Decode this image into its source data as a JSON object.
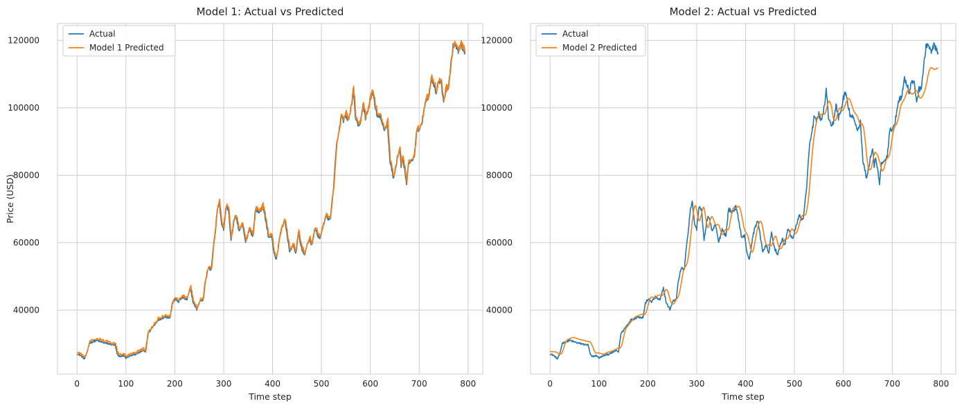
{
  "chart_data": [
    {
      "type": "line",
      "title": "Model 1: Actual vs Predicted",
      "xlabel": "Time step",
      "ylabel": "Price (USD)",
      "xlim": [
        -40,
        830
      ],
      "ylim": [
        21000,
        125000
      ],
      "xticks": [
        0,
        100,
        200,
        300,
        400,
        500,
        600,
        700,
        800
      ],
      "yticks": [
        40000,
        60000,
        80000,
        100000,
        120000
      ],
      "grid": true,
      "legend": "top-left",
      "lag": 1,
      "pred_noise": 600,
      "series": [
        {
          "name": "Actual",
          "color": "#1f77b4"
        },
        {
          "name": "Model 1 Predicted",
          "color": "#ff7f0e"
        }
      ],
      "anchors": [
        [
          0,
          27000
        ],
        [
          8,
          26500
        ],
        [
          15,
          25500
        ],
        [
          20,
          27000
        ],
        [
          25,
          30200
        ],
        [
          40,
          31000
        ],
        [
          55,
          30300
        ],
        [
          70,
          29800
        ],
        [
          78,
          29600
        ],
        [
          82,
          27000
        ],
        [
          85,
          26200
        ],
        [
          95,
          26500
        ],
        [
          100,
          25800
        ],
        [
          110,
          26500
        ],
        [
          125,
          27200
        ],
        [
          135,
          28000
        ],
        [
          140,
          27600
        ],
        [
          145,
          33000
        ],
        [
          155,
          35000
        ],
        [
          165,
          37000
        ],
        [
          180,
          38000
        ],
        [
          190,
          37800
        ],
        [
          195,
          42000
        ],
        [
          200,
          43200
        ],
        [
          208,
          42500
        ],
        [
          215,
          43800
        ],
        [
          225,
          43000
        ],
        [
          232,
          46500
        ],
        [
          238,
          42000
        ],
        [
          245,
          40200
        ],
        [
          252,
          42800
        ],
        [
          258,
          43000
        ],
        [
          262,
          48500
        ],
        [
          268,
          52300
        ],
        [
          275,
          52000
        ],
        [
          278,
          58000
        ],
        [
          283,
          63500
        ],
        [
          287,
          70000
        ],
        [
          291,
          72500
        ],
        [
          295,
          66000
        ],
        [
          300,
          64000
        ],
        [
          305,
          71000
        ],
        [
          310,
          69500
        ],
        [
          315,
          60500
        ],
        [
          320,
          66000
        ],
        [
          325,
          68000
        ],
        [
          332,
          63000
        ],
        [
          338,
          65500
        ],
        [
          345,
          60000
        ],
        [
          352,
          64000
        ],
        [
          360,
          62000
        ],
        [
          365,
          70000
        ],
        [
          372,
          69000
        ],
        [
          380,
          70500
        ],
        [
          385,
          67500
        ],
        [
          392,
          61500
        ],
        [
          398,
          62000
        ],
        [
          403,
          57000
        ],
        [
          408,
          55000
        ],
        [
          415,
          62000
        ],
        [
          420,
          65000
        ],
        [
          425,
          66500
        ],
        [
          430,
          62000
        ],
        [
          435,
          57500
        ],
        [
          442,
          59000
        ],
        [
          448,
          57000
        ],
        [
          453,
          63000
        ],
        [
          458,
          59000
        ],
        [
          465,
          56500
        ],
        [
          470,
          58500
        ],
        [
          475,
          61500
        ],
        [
          480,
          59000
        ],
        [
          487,
          64500
        ],
        [
          492,
          62000
        ],
        [
          498,
          61500
        ],
        [
          505,
          66000
        ],
        [
          510,
          68000
        ],
        [
          517,
          66500
        ],
        [
          520,
          70000
        ],
        [
          525,
          76000
        ],
        [
          530,
          88000
        ],
        [
          535,
          92000
        ],
        [
          540,
          97000
        ],
        [
          545,
          96000
        ],
        [
          550,
          98000
        ],
        [
          555,
          96000
        ],
        [
          560,
          99500
        ],
        [
          565,
          105000
        ],
        [
          570,
          97000
        ],
        [
          575,
          94000
        ],
        [
          580,
          96000
        ],
        [
          585,
          101000
        ],
        [
          590,
          97000
        ],
        [
          595,
          99000
        ],
        [
          600,
          103000
        ],
        [
          605,
          104500
        ],
        [
          610,
          100000
        ],
        [
          615,
          97500
        ],
        [
          620,
          97000
        ],
        [
          625,
          95000
        ],
        [
          630,
          93500
        ],
        [
          635,
          96000
        ],
        [
          640,
          84000
        ],
        [
          645,
          81000
        ],
        [
          648,
          79000
        ],
        [
          652,
          82500
        ],
        [
          655,
          85000
        ],
        [
          660,
          88000
        ],
        [
          663,
          83000
        ],
        [
          666,
          84500
        ],
        [
          670,
          82000
        ],
        [
          674,
          77000
        ],
        [
          678,
          84000
        ],
        [
          683,
          83500
        ],
        [
          690,
          86000
        ],
        [
          695,
          93000
        ],
        [
          700,
          94000
        ],
        [
          705,
          94500
        ],
        [
          710,
          100000
        ],
        [
          715,
          103000
        ],
        [
          720,
          103500
        ],
        [
          725,
          109000
        ],
        [
          730,
          107000
        ],
        [
          735,
          104500
        ],
        [
          740,
          108000
        ],
        [
          745,
          107000
        ],
        [
          750,
          102000
        ],
        [
          755,
          105500
        ],
        [
          760,
          106500
        ],
        [
          765,
          113000
        ],
        [
          770,
          119000
        ],
        [
          775,
          118500
        ],
        [
          780,
          116000
        ],
        [
          785,
          119000
        ],
        [
          790,
          117000
        ],
        [
          794,
          116000
        ]
      ]
    },
    {
      "type": "line",
      "title": "Model 2: Actual vs Predicted",
      "xlabel": "Time step",
      "ylabel": "",
      "xlim": [
        -40,
        830
      ],
      "ylim": [
        21000,
        125000
      ],
      "xticks": [
        0,
        100,
        200,
        300,
        400,
        500,
        600,
        700,
        800
      ],
      "yticks": [
        40000,
        60000,
        80000,
        100000,
        120000
      ],
      "grid": true,
      "legend": "top-left",
      "lag": 7,
      "pred_noise": 0,
      "series": [
        {
          "name": "Actual",
          "color": "#1f77b4"
        },
        {
          "name": "Model 2 Predicted",
          "color": "#ff7f0e"
        }
      ],
      "anchors": [
        [
          0,
          27000
        ],
        [
          8,
          26500
        ],
        [
          15,
          25500
        ],
        [
          20,
          27000
        ],
        [
          25,
          30200
        ],
        [
          40,
          31000
        ],
        [
          55,
          30300
        ],
        [
          70,
          29800
        ],
        [
          78,
          29600
        ],
        [
          82,
          27000
        ],
        [
          85,
          26200
        ],
        [
          95,
          26500
        ],
        [
          100,
          25800
        ],
        [
          110,
          26500
        ],
        [
          125,
          27200
        ],
        [
          135,
          28000
        ],
        [
          140,
          27600
        ],
        [
          145,
          33000
        ],
        [
          155,
          35000
        ],
        [
          165,
          37000
        ],
        [
          180,
          38000
        ],
        [
          190,
          37800
        ],
        [
          195,
          42000
        ],
        [
          200,
          43200
        ],
        [
          208,
          42500
        ],
        [
          215,
          43800
        ],
        [
          225,
          43000
        ],
        [
          232,
          46500
        ],
        [
          238,
          42000
        ],
        [
          245,
          40200
        ],
        [
          252,
          42800
        ],
        [
          258,
          43000
        ],
        [
          262,
          48500
        ],
        [
          268,
          52300
        ],
        [
          275,
          52000
        ],
        [
          278,
          58000
        ],
        [
          283,
          63500
        ],
        [
          287,
          70000
        ],
        [
          291,
          72500
        ],
        [
          295,
          66000
        ],
        [
          300,
          64000
        ],
        [
          305,
          71000
        ],
        [
          310,
          69500
        ],
        [
          315,
          60500
        ],
        [
          320,
          66000
        ],
        [
          325,
          68000
        ],
        [
          332,
          63000
        ],
        [
          338,
          65500
        ],
        [
          345,
          60000
        ],
        [
          352,
          64000
        ],
        [
          360,
          62000
        ],
        [
          365,
          70000
        ],
        [
          372,
          69000
        ],
        [
          380,
          70500
        ],
        [
          385,
          67500
        ],
        [
          392,
          61500
        ],
        [
          398,
          62000
        ],
        [
          403,
          57000
        ],
        [
          408,
          55000
        ],
        [
          415,
          62000
        ],
        [
          420,
          65000
        ],
        [
          425,
          66500
        ],
        [
          430,
          62000
        ],
        [
          435,
          57500
        ],
        [
          442,
          59000
        ],
        [
          448,
          57000
        ],
        [
          453,
          63000
        ],
        [
          458,
          59000
        ],
        [
          465,
          56500
        ],
        [
          470,
          58500
        ],
        [
          475,
          61500
        ],
        [
          480,
          59000
        ],
        [
          487,
          64500
        ],
        [
          492,
          62000
        ],
        [
          498,
          61500
        ],
        [
          505,
          66000
        ],
        [
          510,
          68000
        ],
        [
          517,
          66500
        ],
        [
          520,
          70000
        ],
        [
          525,
          76000
        ],
        [
          530,
          88000
        ],
        [
          535,
          92000
        ],
        [
          540,
          97000
        ],
        [
          545,
          96000
        ],
        [
          550,
          98000
        ],
        [
          555,
          96000
        ],
        [
          560,
          99500
        ],
        [
          565,
          105000
        ],
        [
          570,
          97000
        ],
        [
          575,
          94000
        ],
        [
          580,
          96000
        ],
        [
          585,
          101000
        ],
        [
          590,
          97000
        ],
        [
          595,
          99000
        ],
        [
          600,
          103000
        ],
        [
          605,
          104500
        ],
        [
          610,
          100000
        ],
        [
          615,
          97500
        ],
        [
          620,
          97000
        ],
        [
          625,
          95000
        ],
        [
          630,
          93500
        ],
        [
          635,
          96000
        ],
        [
          640,
          84000
        ],
        [
          645,
          81000
        ],
        [
          648,
          79000
        ],
        [
          652,
          82500
        ],
        [
          655,
          85000
        ],
        [
          660,
          88000
        ],
        [
          663,
          83000
        ],
        [
          666,
          84500
        ],
        [
          670,
          82000
        ],
        [
          674,
          77000
        ],
        [
          678,
          84000
        ],
        [
          683,
          83500
        ],
        [
          690,
          86000
        ],
        [
          695,
          93000
        ],
        [
          700,
          94000
        ],
        [
          705,
          94500
        ],
        [
          710,
          100000
        ],
        [
          715,
          103000
        ],
        [
          720,
          103500
        ],
        [
          725,
          109000
        ],
        [
          730,
          107000
        ],
        [
          735,
          104500
        ],
        [
          740,
          108000
        ],
        [
          745,
          107000
        ],
        [
          750,
          102000
        ],
        [
          755,
          105500
        ],
        [
          760,
          106500
        ],
        [
          765,
          113000
        ],
        [
          770,
          119000
        ],
        [
          775,
          118500
        ],
        [
          780,
          116000
        ],
        [
          785,
          119000
        ],
        [
          790,
          117000
        ],
        [
          794,
          116000
        ]
      ]
    }
  ]
}
